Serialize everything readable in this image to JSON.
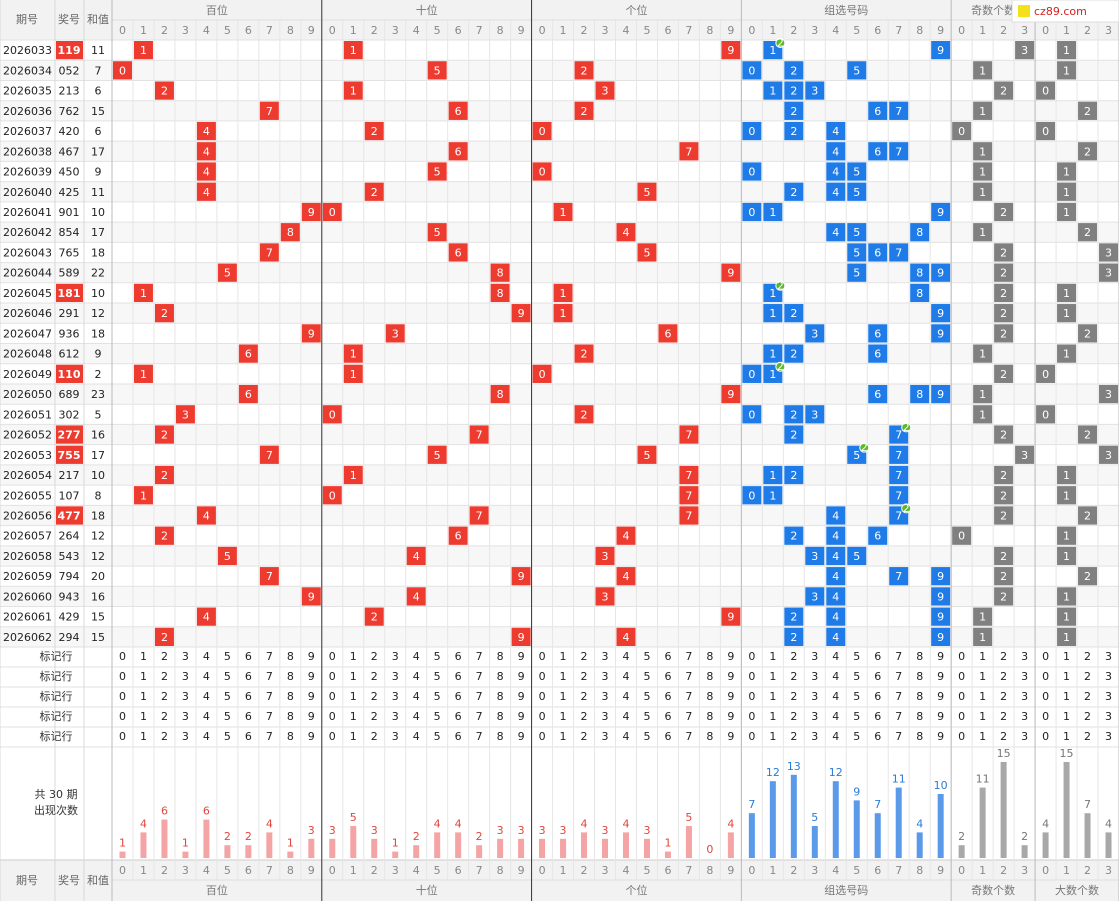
{
  "logo": "cz89.com",
  "header": {
    "issue": "期号",
    "number": "奖号",
    "sum": "和值"
  },
  "groups": [
    {
      "name": "百位",
      "digits": [
        "0",
        "1",
        "2",
        "3",
        "4",
        "5",
        "6",
        "7",
        "8",
        "9"
      ]
    },
    {
      "name": "十位",
      "digits": [
        "0",
        "1",
        "2",
        "3",
        "4",
        "5",
        "6",
        "7",
        "8",
        "9"
      ]
    },
    {
      "name": "个位",
      "digits": [
        "0",
        "1",
        "2",
        "3",
        "4",
        "5",
        "6",
        "7",
        "8",
        "9"
      ]
    },
    {
      "name": "组选号码",
      "digits": [
        "0",
        "1",
        "2",
        "3",
        "4",
        "5",
        "6",
        "7",
        "8",
        "9"
      ]
    },
    {
      "name": "奇数个数",
      "digits": [
        "0",
        "1",
        "2",
        "3"
      ]
    },
    {
      "name": "大数个数",
      "digits": [
        "0",
        "1",
        "2",
        "3"
      ]
    }
  ],
  "rows": [
    {
      "issue": "2026033",
      "number": "119",
      "sum": 11
    },
    {
      "issue": "2026034",
      "number": "052",
      "sum": 7
    },
    {
      "issue": "2026035",
      "number": "213",
      "sum": 6
    },
    {
      "issue": "2026036",
      "number": "762",
      "sum": 15
    },
    {
      "issue": "2026037",
      "number": "420",
      "sum": 6
    },
    {
      "issue": "2026038",
      "number": "467",
      "sum": 17
    },
    {
      "issue": "2026039",
      "number": "450",
      "sum": 9
    },
    {
      "issue": "2026040",
      "number": "425",
      "sum": 11
    },
    {
      "issue": "2026041",
      "number": "901",
      "sum": 10
    },
    {
      "issue": "2026042",
      "number": "854",
      "sum": 17
    },
    {
      "issue": "2026043",
      "number": "765",
      "sum": 18
    },
    {
      "issue": "2026044",
      "number": "589",
      "sum": 22
    },
    {
      "issue": "2026045",
      "number": "181",
      "sum": 10
    },
    {
      "issue": "2026046",
      "number": "291",
      "sum": 12
    },
    {
      "issue": "2026047",
      "number": "936",
      "sum": 18
    },
    {
      "issue": "2026048",
      "number": "612",
      "sum": 9
    },
    {
      "issue": "2026049",
      "number": "110",
      "sum": 2
    },
    {
      "issue": "2026050",
      "number": "689",
      "sum": 23
    },
    {
      "issue": "2026051",
      "number": "302",
      "sum": 5
    },
    {
      "issue": "2026052",
      "number": "277",
      "sum": 16
    },
    {
      "issue": "2026053",
      "number": "755",
      "sum": 17
    },
    {
      "issue": "2026054",
      "number": "217",
      "sum": 10
    },
    {
      "issue": "2026055",
      "number": "107",
      "sum": 8
    },
    {
      "issue": "2026056",
      "number": "477",
      "sum": 18
    },
    {
      "issue": "2026057",
      "number": "264",
      "sum": 12
    },
    {
      "issue": "2026058",
      "number": "543",
      "sum": 12
    },
    {
      "issue": "2026059",
      "number": "794",
      "sum": 20
    },
    {
      "issue": "2026060",
      "number": "943",
      "sum": 16
    },
    {
      "issue": "2026061",
      "number": "429",
      "sum": 15
    },
    {
      "issue": "2026062",
      "number": "294",
      "sum": 15
    }
  ],
  "repeat_badge": "2",
  "marker_label": "标记行",
  "stats": {
    "title": "共 30 期",
    "subtitle": "出现次数",
    "counts": [
      [
        1,
        4,
        6,
        1,
        6,
        2,
        2,
        4,
        1,
        3
      ],
      [
        3,
        5,
        3,
        1,
        2,
        4,
        4,
        2,
        3,
        3
      ],
      [
        3,
        3,
        4,
        3,
        4,
        3,
        1,
        5,
        0,
        4
      ],
      [
        7,
        12,
        13,
        5,
        12,
        9,
        7,
        11,
        4,
        10
      ],
      [
        2,
        11,
        15,
        2
      ],
      [
        4,
        15,
        7,
        4
      ]
    ]
  }
}
